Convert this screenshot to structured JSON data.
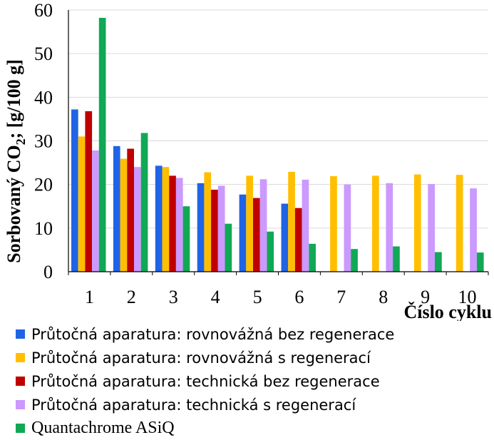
{
  "chart_data": {
    "type": "bar",
    "title": "",
    "xlabel": "Číslo cyklu",
    "ylabel": "Sorbovaný CO2; [g/100 g]",
    "ylim": [
      0,
      60
    ],
    "yticks": [
      "0",
      "10",
      "20",
      "30",
      "40",
      "50",
      "60"
    ],
    "categories": [
      "1",
      "2",
      "3",
      "4",
      "5",
      "6",
      "7",
      "8",
      "9",
      "10"
    ],
    "grid": "horizontal",
    "legend_position": "bottom",
    "series": [
      {
        "name": "Průtočná aparatura: rovnovážná bez regenerace",
        "color": "#1f64e6",
        "values": [
          37.2,
          28.8,
          24.3,
          20.3,
          17.7,
          15.6,
          null,
          null,
          null,
          null
        ]
      },
      {
        "name": "Průtočná aparatura: rovnovážná s regenerací",
        "color": "#ffbf00",
        "values": [
          31.0,
          25.9,
          24.0,
          22.8,
          22.0,
          22.9,
          21.9,
          22.0,
          22.3,
          22.2
        ]
      },
      {
        "name": "Průtočná aparatura: technická bez regenerace",
        "color": "#c00000",
        "values": [
          36.8,
          28.2,
          22.0,
          18.8,
          16.9,
          14.6,
          null,
          null,
          null,
          null
        ]
      },
      {
        "name": "Průtočná aparatura: technická s regenerací",
        "color": "#cc99ff",
        "values": [
          27.8,
          24.0,
          21.5,
          19.7,
          21.2,
          21.1,
          20.0,
          20.3,
          20.1,
          19.1
        ]
      },
      {
        "name": "Quantachrome ASiQ",
        "color": "#11a855",
        "values": [
          58.2,
          31.8,
          15.0,
          11.0,
          9.2,
          6.4,
          5.2,
          5.8,
          4.5,
          4.4
        ]
      }
    ]
  }
}
